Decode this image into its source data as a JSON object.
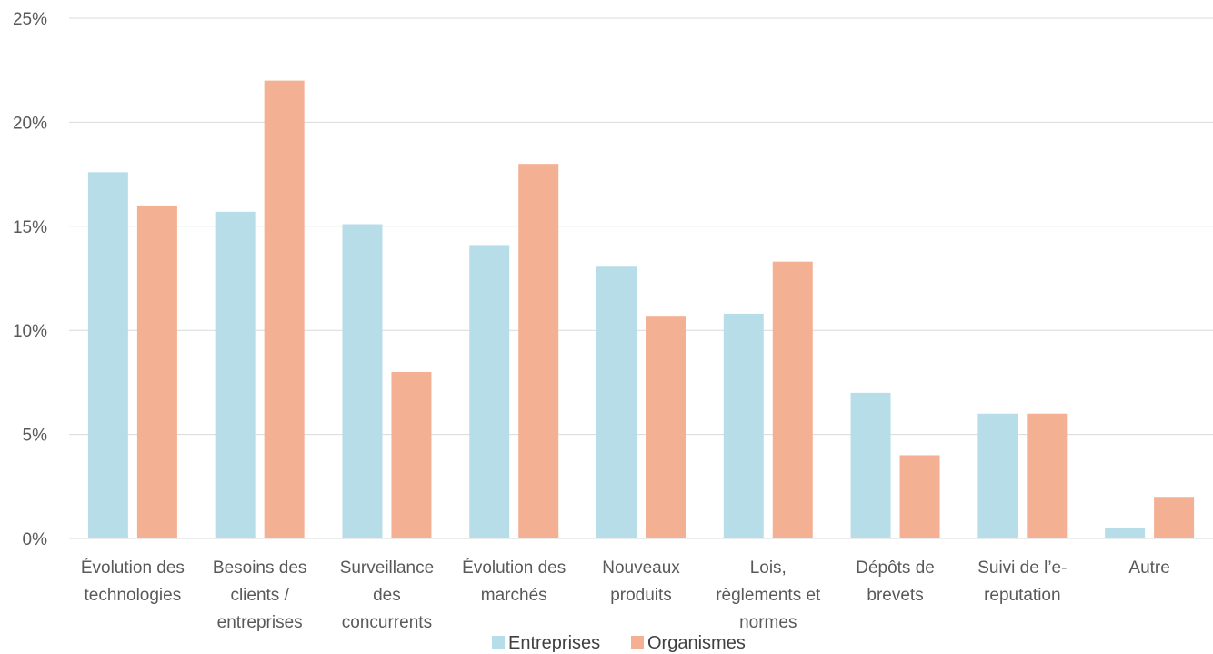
{
  "chart_data": {
    "type": "bar",
    "title": "",
    "xlabel": "",
    "ylabel": "",
    "ylim": [
      0,
      25
    ],
    "yticks": [
      "0%",
      "5%",
      "10%",
      "15%",
      "20%",
      "25%"
    ],
    "ytick_values": [
      0,
      5,
      10,
      15,
      20,
      25
    ],
    "grid": true,
    "legend_position": "bottom",
    "categories": [
      [
        "Évolution des",
        "technologies"
      ],
      [
        "Besoins des",
        "clients /",
        "entreprises"
      ],
      [
        "Surveillance",
        "des",
        "concurrents"
      ],
      [
        "Évolution des",
        "marchés"
      ],
      [
        "Nouveaux",
        "produits"
      ],
      [
        "Lois,",
        "règlements et",
        "normes"
      ],
      [
        "Dépôts de",
        "brevets"
      ],
      [
        "Suivi de l’e-",
        "reputation"
      ],
      [
        "Autre"
      ]
    ],
    "series": [
      {
        "name": "Entreprises",
        "color": "#b7dee8",
        "values": [
          17.6,
          15.7,
          15.1,
          14.1,
          13.1,
          10.8,
          7.0,
          6.0,
          0.5
        ]
      },
      {
        "name": "Organismes",
        "color": "#f4b093",
        "values": [
          16.0,
          22.0,
          8.0,
          18.0,
          10.7,
          13.3,
          4.0,
          6.0,
          2.0
        ]
      }
    ]
  },
  "colors": {
    "grid": "#d9d9d9",
    "axis_text": "#595959"
  }
}
